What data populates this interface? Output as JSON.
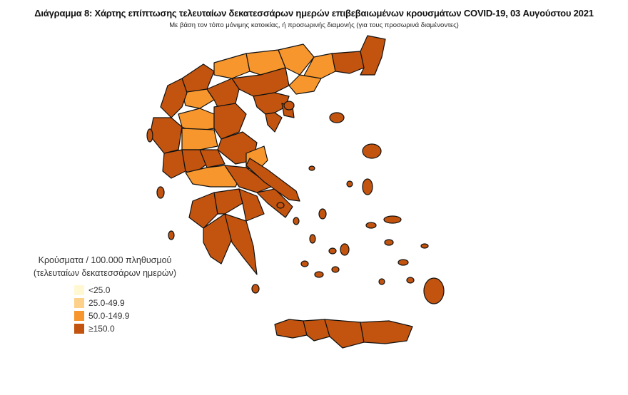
{
  "title": "Διάγραμμα 8: Χάρτης επίπτωσης τελευταίων δεκατεσσάρων ημερών επιβεβαιωμένων κρουσμάτων COVID-19, 03 Αυγούστου 2021",
  "subtitle": "Με βάση τον τόπο μόνιμης κατοικίας, ή προσωρινής διαμονής (για τους προσωρινά διαμένοντες)",
  "legend": {
    "title_line1": "Κρούσματα / 100.000 πληθυσμού",
    "title_line2": "(τελευταίων δεκατεσσάρων ημερών)",
    "items": [
      {
        "label": "<25.0",
        "color": "#fff8d2"
      },
      {
        "label": "25.0-49.9",
        "color": "#fdd18a"
      },
      {
        "label": "50.0-149.9",
        "color": "#f7962c"
      },
      {
        "label": "≥150.0",
        "color": "#c2540f"
      }
    ]
  },
  "region_levels": [
    3,
    2,
    2,
    2,
    2,
    3,
    3,
    2,
    3,
    3,
    2,
    3,
    3,
    2,
    3,
    3,
    2,
    3,
    2,
    3,
    3,
    3,
    2,
    3,
    3,
    3,
    3,
    3,
    3,
    3,
    3,
    3,
    3,
    3,
    3,
    3,
    3,
    3,
    3,
    3,
    3,
    3
  ]
}
